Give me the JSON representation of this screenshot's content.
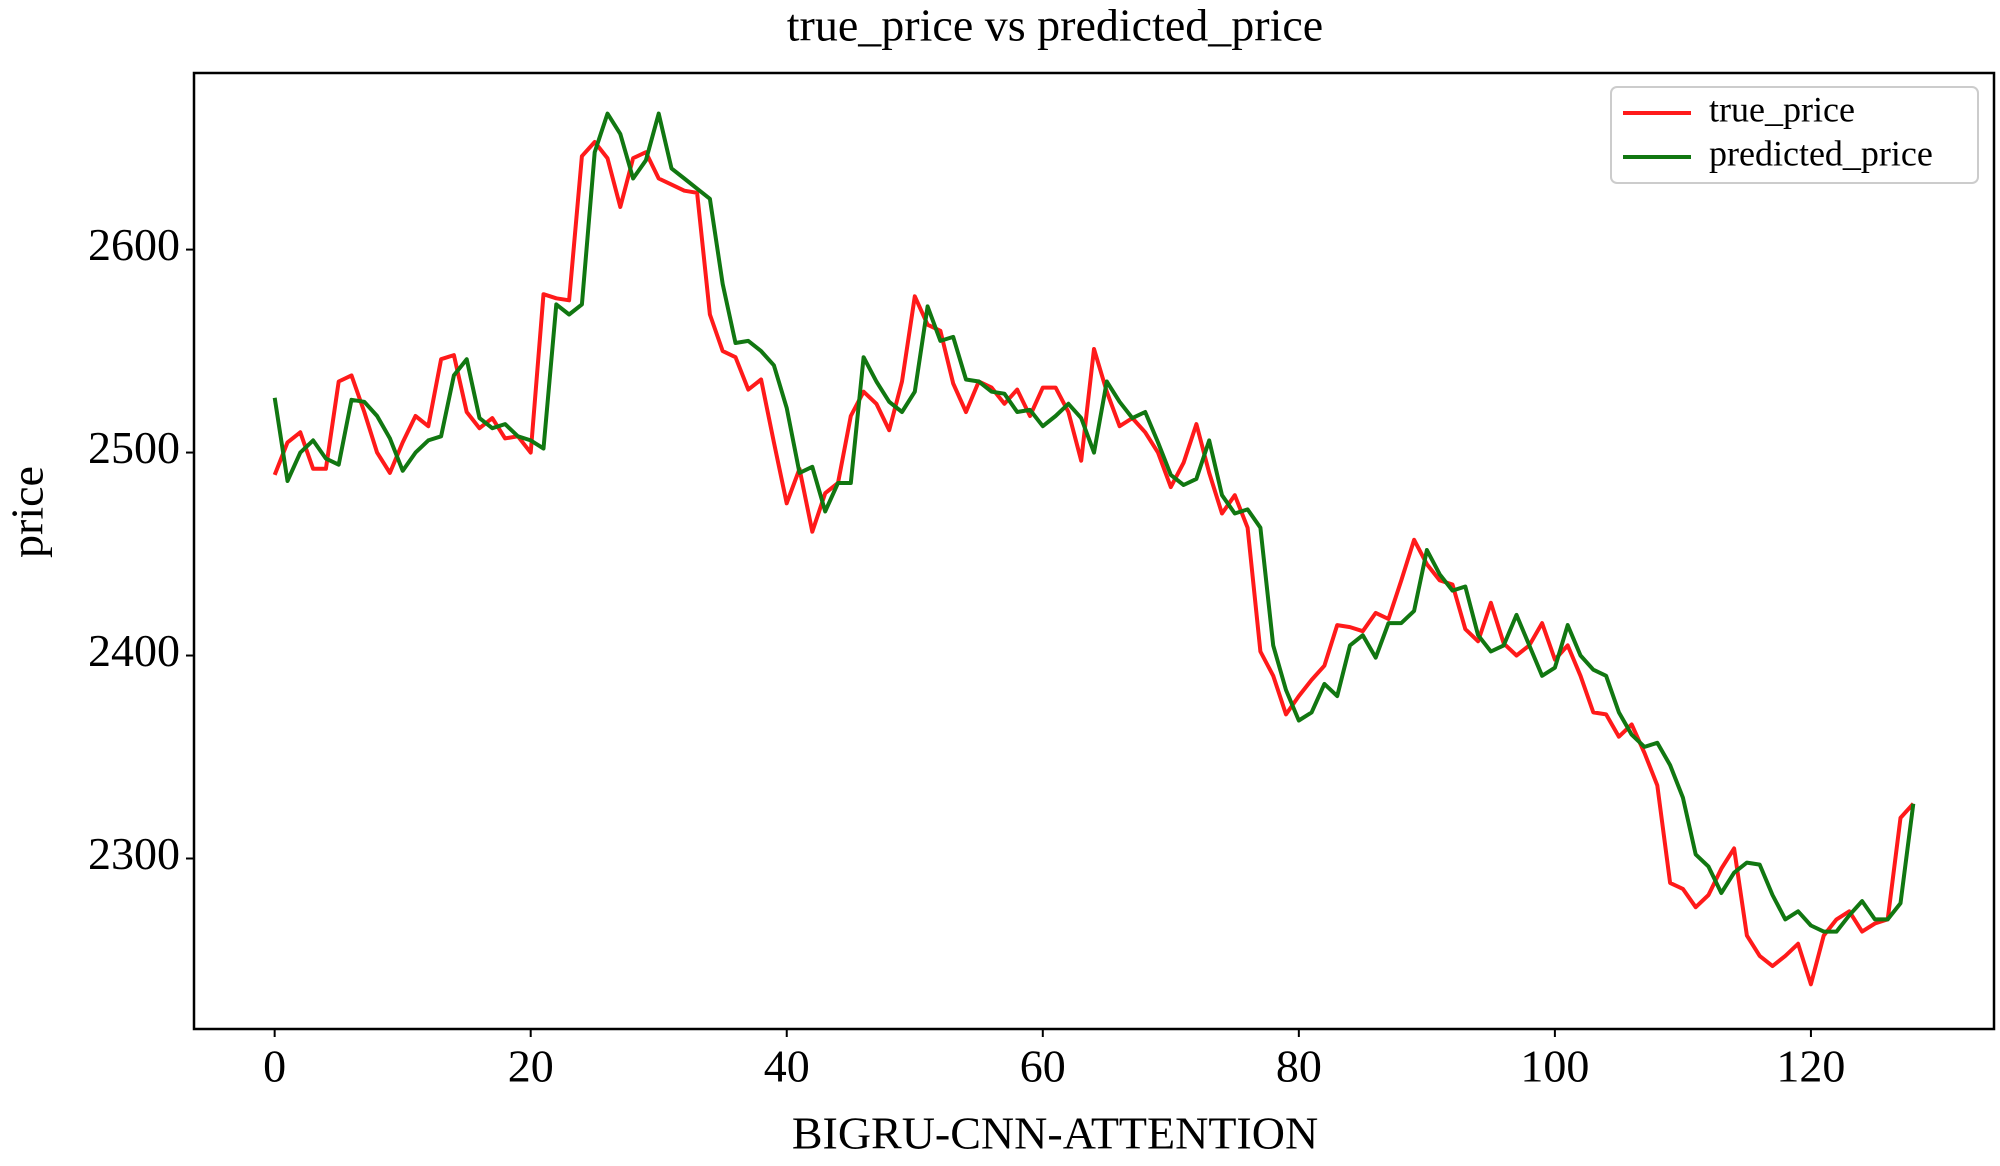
{
  "chart_data": {
    "type": "line",
    "title": "true_price vs predicted_price",
    "xlabel": "BIGRU-CNN-ATTENTION",
    "ylabel": "price",
    "x": [
      0,
      1,
      2,
      3,
      4,
      5,
      6,
      7,
      8,
      9,
      10,
      11,
      12,
      13,
      14,
      15,
      16,
      17,
      18,
      19,
      20,
      21,
      22,
      23,
      24,
      25,
      26,
      27,
      28,
      29,
      30,
      31,
      32,
      33,
      34,
      35,
      36,
      37,
      38,
      39,
      40,
      41,
      42,
      43,
      44,
      45,
      46,
      47,
      48,
      49,
      50,
      51,
      52,
      53,
      54,
      55,
      56,
      57,
      58,
      59,
      60,
      61,
      62,
      63,
      64,
      65,
      66,
      67,
      68,
      69,
      70,
      71,
      72,
      73,
      74,
      75,
      76,
      77,
      78,
      79,
      80,
      81,
      82,
      83,
      84,
      85,
      86,
      87,
      88,
      89,
      90,
      91,
      92,
      93,
      94,
      95,
      96,
      97,
      98,
      99,
      100,
      101,
      102,
      103,
      104,
      105,
      106,
      107,
      108,
      109,
      110,
      111,
      112,
      113,
      114,
      115,
      116,
      117,
      118,
      119,
      120,
      121,
      122,
      123,
      124,
      125,
      126,
      127,
      128
    ],
    "series": [
      {
        "name": "true_price",
        "color": "#ff1a1a",
        "values": [
          2489,
          2505,
          2510,
          2492,
          2492,
          2535,
          2538,
          2520,
          2500,
          2490,
          2505,
          2518,
          2513,
          2546,
          2548,
          2520,
          2512,
          2517,
          2507,
          2508,
          2500,
          2578,
          2576,
          2575,
          2646,
          2653,
          2645,
          2621,
          2645,
          2648,
          2635,
          2632,
          2629,
          2628,
          2568,
          2550,
          2547,
          2531,
          2536,
          2505,
          2475,
          2492,
          2461,
          2480,
          2485,
          2518,
          2530,
          2524,
          2511,
          2535,
          2577,
          2563,
          2560,
          2534,
          2520,
          2535,
          2532,
          2524,
          2531,
          2518,
          2532,
          2532,
          2520,
          2496,
          2551,
          2530,
          2513,
          2517,
          2510,
          2500,
          2483,
          2495,
          2514,
          2490,
          2470,
          2479,
          2463,
          2402,
          2390,
          2371,
          2380,
          2388,
          2395,
          2415,
          2414,
          2412,
          2421,
          2418,
          2437,
          2457,
          2445,
          2437,
          2435,
          2413,
          2407,
          2426,
          2406,
          2400,
          2405,
          2416,
          2398,
          2405,
          2390,
          2372,
          2371,
          2360,
          2366,
          2352,
          2336,
          2288,
          2285,
          2276,
          2282,
          2295,
          2305,
          2262,
          2252,
          2247,
          2252,
          2258,
          2238,
          2262,
          2270,
          2274,
          2264,
          2268,
          2270,
          2320,
          2327
        ]
      },
      {
        "name": "predicted_price",
        "color": "#117711",
        "values": [
          2527,
          2486,
          2500,
          2506,
          2497,
          2494,
          2526,
          2525,
          2518,
          2507,
          2491,
          2500,
          2506,
          2508,
          2538,
          2546,
          2517,
          2512,
          2514,
          2508,
          2506,
          2502,
          2573,
          2568,
          2573,
          2648,
          2667,
          2657,
          2635,
          2644,
          2667,
          2640,
          2635,
          2630,
          2625,
          2583,
          2554,
          2555,
          2550,
          2543,
          2522,
          2490,
          2493,
          2471,
          2485,
          2485,
          2547,
          2535,
          2525,
          2520,
          2530,
          2572,
          2555,
          2557,
          2536,
          2535,
          2530,
          2529,
          2520,
          2521,
          2513,
          2518,
          2524,
          2517,
          2500,
          2535,
          2525,
          2517,
          2520,
          2505,
          2489,
          2484,
          2487,
          2506,
          2479,
          2470,
          2472,
          2463,
          2405,
          2383,
          2368,
          2372,
          2386,
          2380,
          2405,
          2410,
          2399,
          2416,
          2416,
          2422,
          2452,
          2440,
          2432,
          2434,
          2410,
          2402,
          2405,
          2420,
          2405,
          2390,
          2394,
          2415,
          2400,
          2393,
          2390,
          2372,
          2361,
          2355,
          2357,
          2346,
          2330,
          2302,
          2296,
          2283,
          2293,
          2298,
          2297,
          2282,
          2270,
          2274,
          2267,
          2264,
          2264,
          2272,
          2279,
          2270,
          2270,
          2278,
          2327
        ]
      }
    ],
    "xlim": [
      -6.3,
      134.3
    ],
    "xticks": [
      0,
      20,
      40,
      60,
      80,
      100,
      120
    ],
    "ylim": [
      2216,
      2687
    ],
    "yticks": [
      2300,
      2400,
      2500,
      2600
    ],
    "legend": "upper right",
    "grid": false
  }
}
